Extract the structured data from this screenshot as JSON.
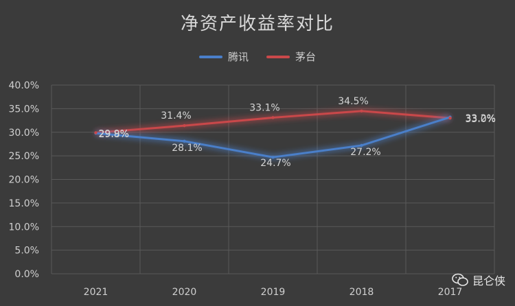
{
  "chart_data": {
    "type": "line",
    "title": "净资产收益率对比",
    "categories": [
      "2021",
      "2020",
      "2019",
      "2018",
      "2017"
    ],
    "ylim": [
      0,
      40
    ],
    "yticks": [
      "0.0%",
      "5.0%",
      "10.0%",
      "15.0%",
      "20.0%",
      "25.0%",
      "30.0%",
      "35.0%",
      "40.0%"
    ],
    "grid": true,
    "legend_position": "top",
    "series": [
      {
        "name": "腾讯",
        "color": "#4a7fc9",
        "values": [
          29.8,
          28.1,
          24.7,
          27.2,
          33.2
        ],
        "labels": [
          "29.8%",
          "28.1%",
          "24.7%",
          "27.2%",
          "33.2%"
        ]
      },
      {
        "name": "茅台",
        "color": "#c9484a",
        "values": [
          29.9,
          31.4,
          33.1,
          34.5,
          33.0
        ],
        "labels": [
          "29.9%",
          "31.4%",
          "33.1%",
          "34.5%",
          "33.0%"
        ]
      }
    ]
  },
  "watermark": {
    "text": "昆仑侠",
    "icon": "wechat-icon"
  }
}
